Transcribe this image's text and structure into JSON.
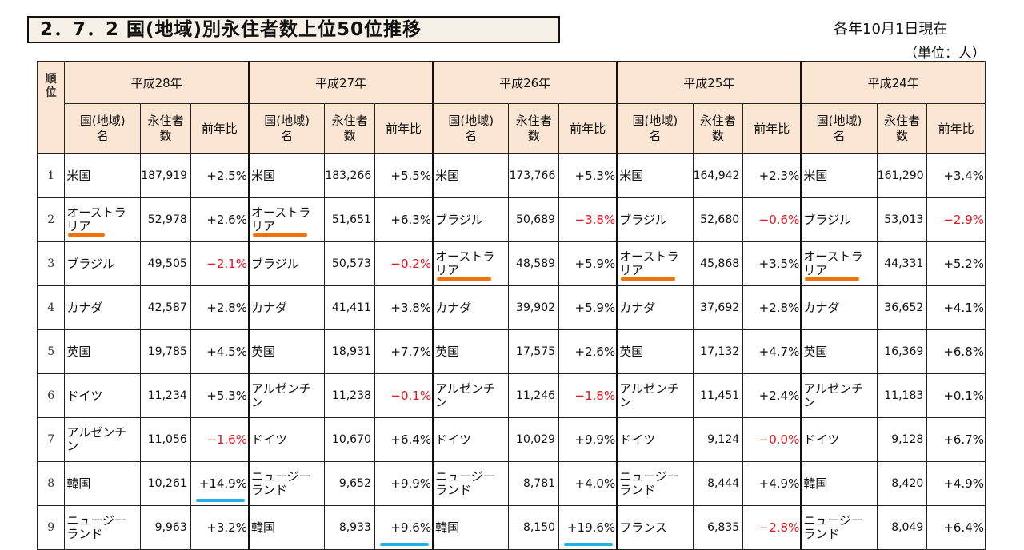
{
  "title": "2．7．2 国(地域)別永住者数上位50位推移",
  "as_of": "各年10月1日現在",
  "unit": "（単位：人）",
  "rank_header": "順\n位",
  "sub_headers": {
    "country": "国(地域)\n名",
    "count": "永住者\n数",
    "yoy": "前年比"
  },
  "years": [
    "平成28年",
    "平成27年",
    "平成26年",
    "平成25年",
    "平成24年"
  ],
  "highlight_colors": {
    "orange_underline": "#f0720a",
    "cyan_underline": "#23b0e8",
    "negative_text": "#e0151f",
    "header_bg": "#fbe5d3"
  },
  "rows": [
    {
      "rank": "1",
      "cells": [
        {
          "name": "米国",
          "count": "187,919",
          "yoy": "+2.5%"
        },
        {
          "name": "米国",
          "count": "183,266",
          "yoy": "+5.5%"
        },
        {
          "name": "米国",
          "count": "173,766",
          "yoy": "+5.3%"
        },
        {
          "name": "米国",
          "count": "164,942",
          "yoy": "+2.3%"
        },
        {
          "name": "米国",
          "count": "161,290",
          "yoy": "+3.4%"
        }
      ]
    },
    {
      "rank": "2",
      "cells": [
        {
          "name": "オーストラ\nリア",
          "count": "52,978",
          "yoy": "+2.6%",
          "mark": "orange"
        },
        {
          "name": "オーストラ\nリア",
          "count": "51,651",
          "yoy": "+6.3%",
          "mark": "orange"
        },
        {
          "name": "ブラジル",
          "count": "50,689",
          "yoy": "−3.8%"
        },
        {
          "name": "ブラジル",
          "count": "52,680",
          "yoy": "−0.6%"
        },
        {
          "name": "ブラジル",
          "count": "53,013",
          "yoy": "−2.9%"
        }
      ]
    },
    {
      "rank": "3",
      "cells": [
        {
          "name": "ブラジル",
          "count": "49,505",
          "yoy": "−2.1%"
        },
        {
          "name": "ブラジル",
          "count": "50,573",
          "yoy": "−0.2%"
        },
        {
          "name": "オーストラ\nリア",
          "count": "48,589",
          "yoy": "+5.9%",
          "mark": "orange"
        },
        {
          "name": "オーストラ\nリア",
          "count": "45,868",
          "yoy": "+3.5%",
          "mark": "orange"
        },
        {
          "name": "オーストラ\nリア",
          "count": "44,331",
          "yoy": "+5.2%",
          "mark": "orange"
        }
      ]
    },
    {
      "rank": "4",
      "cells": [
        {
          "name": "カナダ",
          "count": "42,587",
          "yoy": "+2.8%"
        },
        {
          "name": "カナダ",
          "count": "41,411",
          "yoy": "+3.8%"
        },
        {
          "name": "カナダ",
          "count": "39,902",
          "yoy": "+5.9%"
        },
        {
          "name": "カナダ",
          "count": "37,692",
          "yoy": "+2.8%"
        },
        {
          "name": "カナダ",
          "count": "36,652",
          "yoy": "+4.1%"
        }
      ]
    },
    {
      "rank": "5",
      "cells": [
        {
          "name": "英国",
          "count": "19,785",
          "yoy": "+4.5%"
        },
        {
          "name": "英国",
          "count": "18,931",
          "yoy": "+7.7%"
        },
        {
          "name": "英国",
          "count": "17,575",
          "yoy": "+2.6%"
        },
        {
          "name": "英国",
          "count": "17,132",
          "yoy": "+4.7%"
        },
        {
          "name": "英国",
          "count": "16,369",
          "yoy": "+6.8%"
        }
      ]
    },
    {
      "rank": "6",
      "cells": [
        {
          "name": "ドイツ",
          "count": "11,234",
          "yoy": "+5.3%"
        },
        {
          "name": "アルゼンチ\nン",
          "count": "11,238",
          "yoy": "−0.1%"
        },
        {
          "name": "アルゼンチ\nン",
          "count": "11,246",
          "yoy": "−1.8%"
        },
        {
          "name": "アルゼンチ\nン",
          "count": "11,451",
          "yoy": "+2.4%"
        },
        {
          "name": "アルゼンチ\nン",
          "count": "11,183",
          "yoy": "+0.1%"
        }
      ]
    },
    {
      "rank": "7",
      "cells": [
        {
          "name": "アルゼンチ\nン",
          "count": "11,056",
          "yoy": "−1.6%"
        },
        {
          "name": "ドイツ",
          "count": "10,670",
          "yoy": "+6.4%"
        },
        {
          "name": "ドイツ",
          "count": "10,029",
          "yoy": "+9.9%"
        },
        {
          "name": "ドイツ",
          "count": "9,124",
          "yoy": "−0.0%"
        },
        {
          "name": "ドイツ",
          "count": "9,128",
          "yoy": "+6.7%"
        }
      ]
    },
    {
      "rank": "8",
      "cells": [
        {
          "name": "韓国",
          "count": "10,261",
          "yoy": "+14.9%",
          "mark": "cyan"
        },
        {
          "name": "ニュージー\nランド",
          "count": "9,652",
          "yoy": "+9.9%"
        },
        {
          "name": "ニュージー\nランド",
          "count": "8,781",
          "yoy": "+4.0%"
        },
        {
          "name": "ニュージー\nランド",
          "count": "8,444",
          "yoy": "+4.9%"
        },
        {
          "name": "韓国",
          "count": "8,420",
          "yoy": "+4.9%"
        }
      ]
    },
    {
      "rank": "9",
      "cells": [
        {
          "name": "ニュージー\nランド",
          "count": "9,963",
          "yoy": "+3.2%"
        },
        {
          "name": "韓国",
          "count": "8,933",
          "yoy": "+9.6%",
          "mark": "cyan"
        },
        {
          "name": "韓国",
          "count": "8,150",
          "yoy": "+19.6%",
          "mark": "cyan"
        },
        {
          "name": "フランス",
          "count": "6,835",
          "yoy": "−2.8%"
        },
        {
          "name": "ニュージー\nランド",
          "count": "8,049",
          "yoy": "+6.4%"
        }
      ]
    }
  ]
}
